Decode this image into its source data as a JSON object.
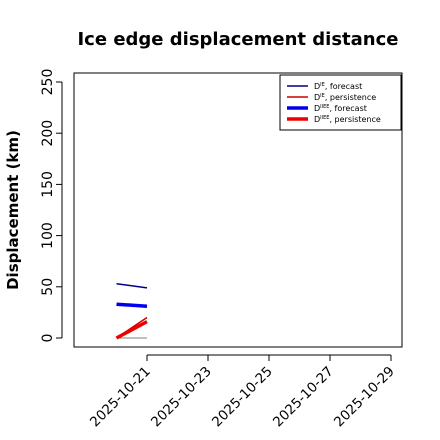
{
  "chart_data": {
    "type": "line",
    "title": "Ice edge displacement distance",
    "ylabel": "Displacement (km)",
    "xlabel": "",
    "ylim": [
      0,
      250
    ],
    "yticks": [
      0,
      50,
      100,
      150,
      200,
      250
    ],
    "x_ticks": [
      "2025-10-21",
      "2025-10-23",
      "2025-10-25",
      "2025-10-27",
      "2025-10-29"
    ],
    "x_tick_colors": [
      "#228B22",
      "#000000",
      "#000000",
      "#000000",
      "#000000"
    ],
    "xlim": [
      "2025-10-19",
      "2025-10-29"
    ],
    "grid": false,
    "legend_placement": "top-right",
    "series": [
      {
        "name": "D^IE, forecast",
        "label_base": "D",
        "label_sup": "IE",
        "label_suffix": ", forecast",
        "color": "#00008B",
        "style": "thin",
        "x": [
          "2025-10-20",
          "2025-10-21"
        ],
        "y": [
          53,
          49
        ]
      },
      {
        "name": "D^IE, persistence",
        "label_base": "D",
        "label_sup": "IE",
        "label_suffix": ", persistence",
        "color": "#CC0000",
        "style": "thin",
        "x": [
          "2025-10-20",
          "2025-10-21"
        ],
        "y": [
          0,
          20
        ]
      },
      {
        "name": "D^IIEE, forecast",
        "label_base": "D",
        "label_sup": "IIEE",
        "label_suffix": ", forecast",
        "color": "#0000EE",
        "style": "thick",
        "x": [
          "2025-10-20",
          "2025-10-21"
        ],
        "y": [
          33,
          31
        ]
      },
      {
        "name": "D^IIEE, persistence",
        "label_base": "D",
        "label_sup": "IIEE",
        "label_suffix": ", persistence",
        "color": "#EE0000",
        "style": "thick",
        "x": [
          "2025-10-20",
          "2025-10-21"
        ],
        "y": [
          0,
          16
        ]
      }
    ],
    "reference_line": {
      "color": "#808080",
      "x": [
        "2025-10-20",
        "2025-10-21"
      ],
      "y": [
        0,
        0
      ]
    }
  }
}
